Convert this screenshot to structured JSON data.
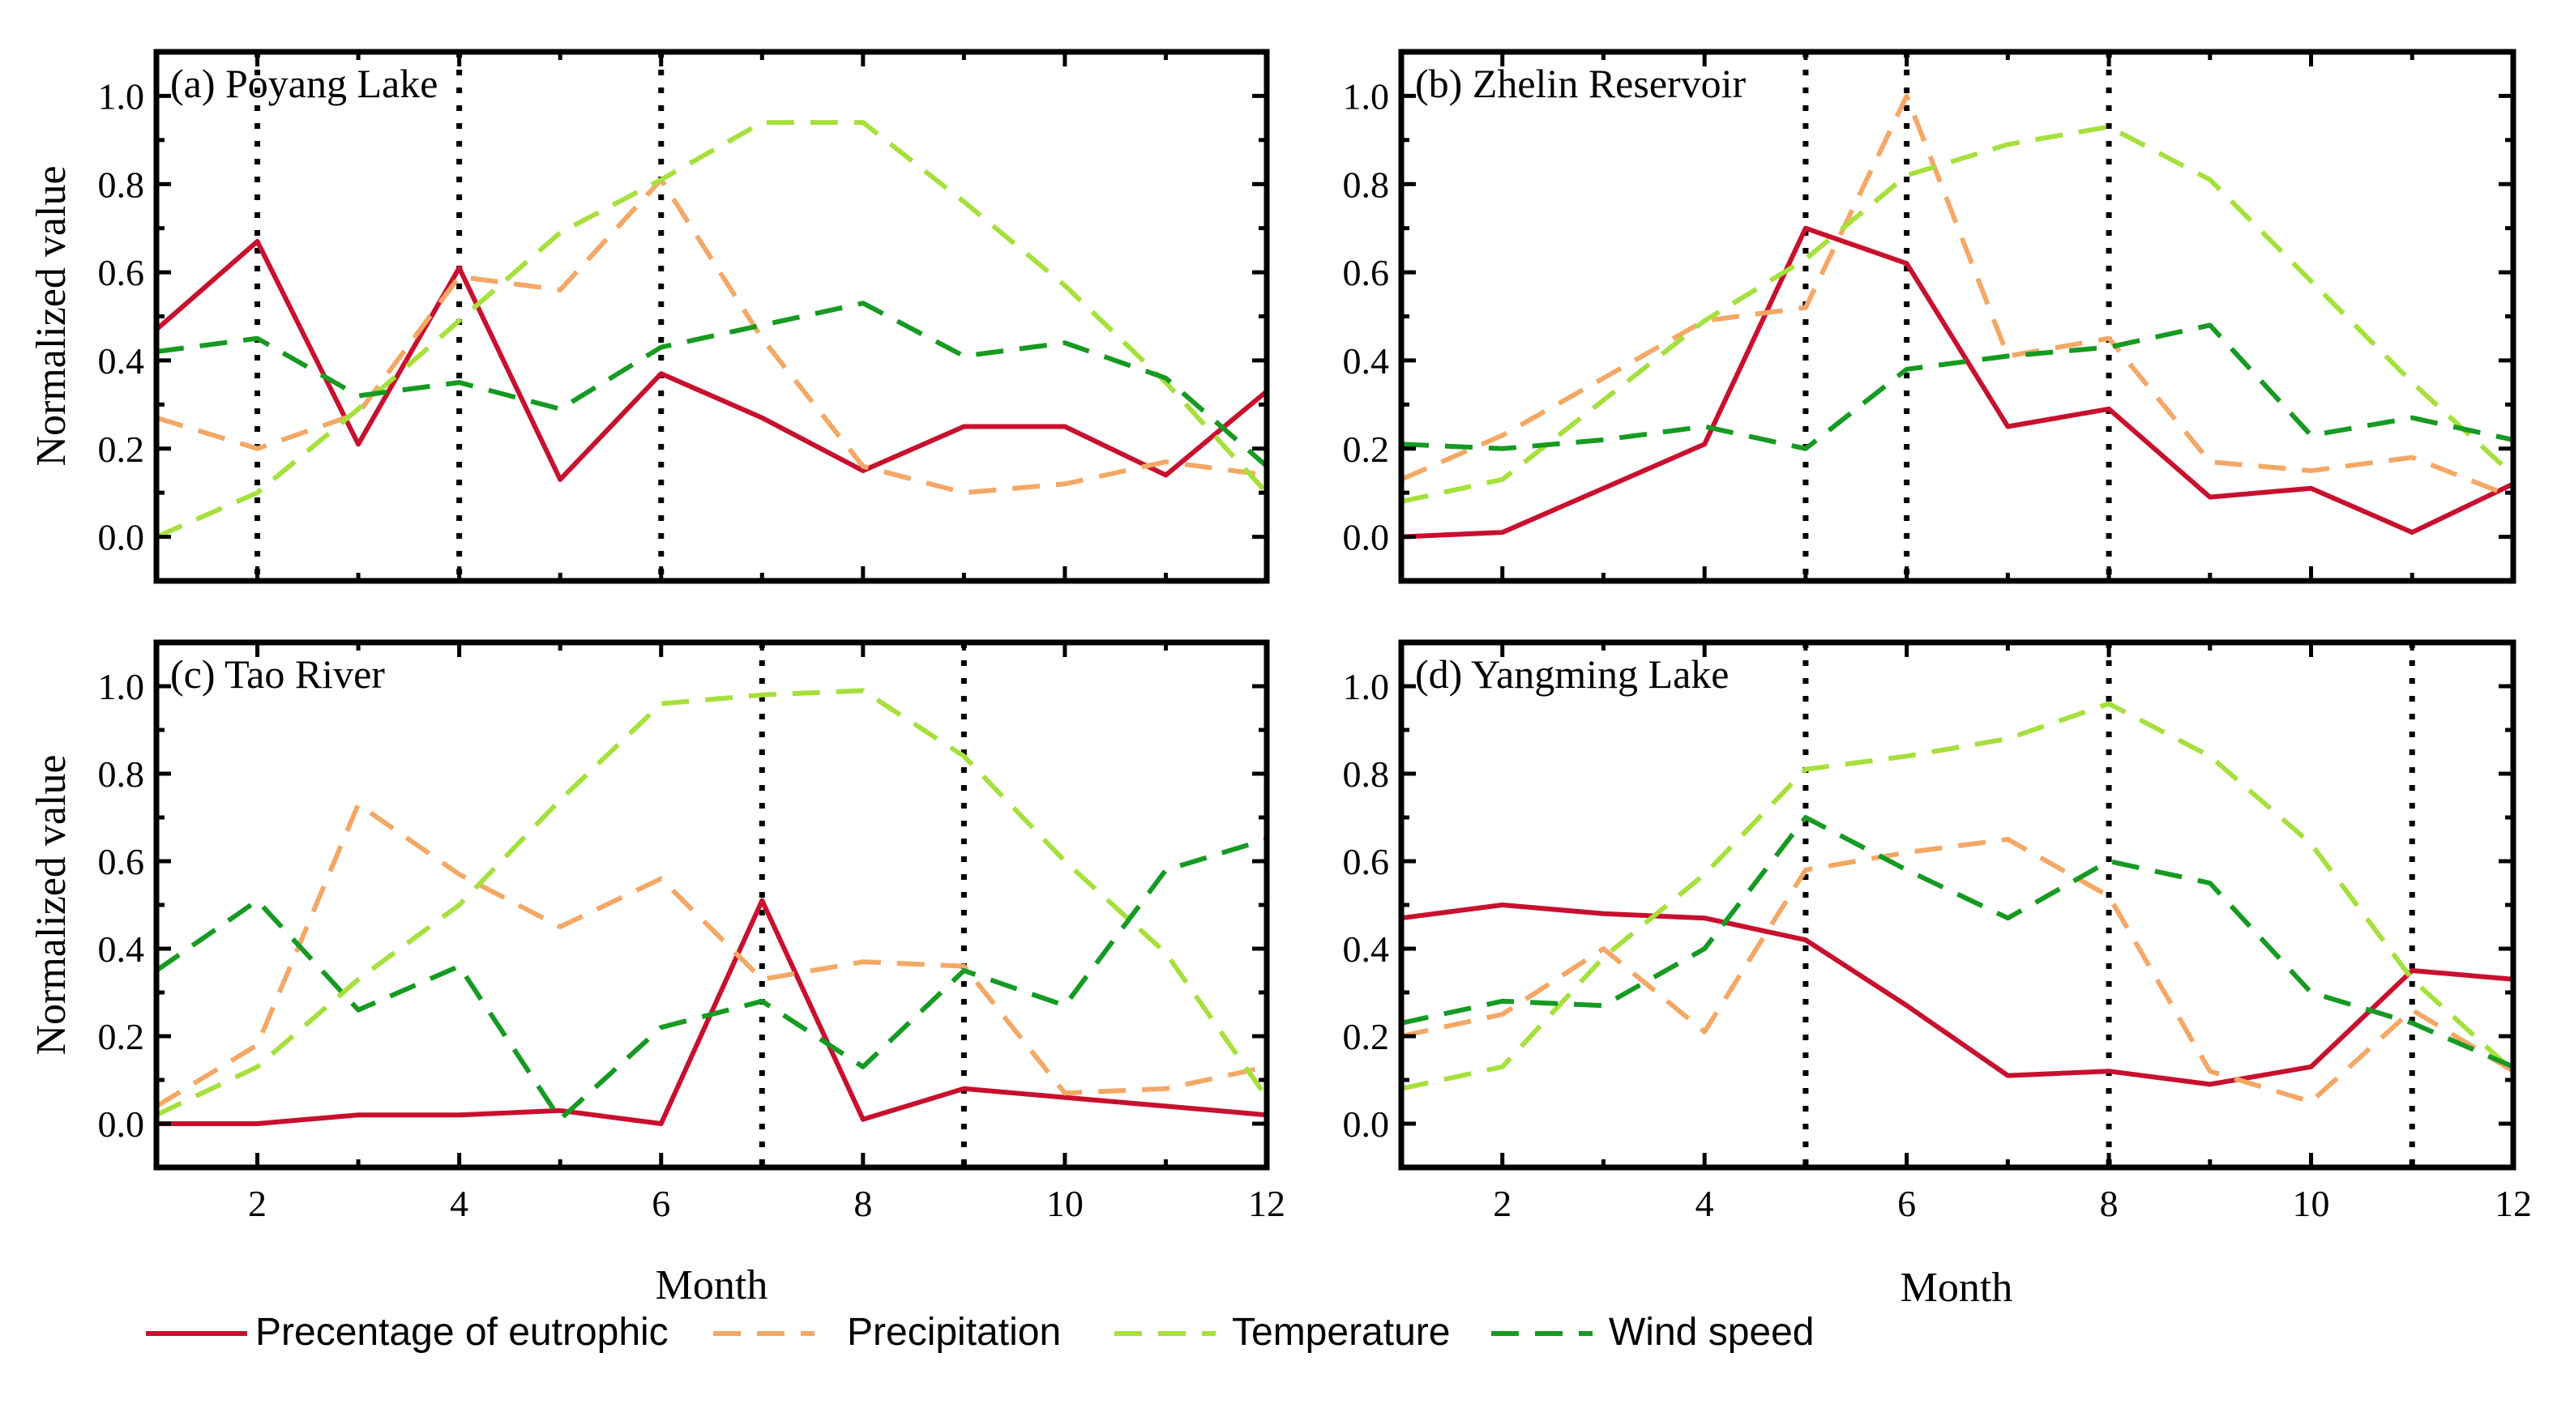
{
  "chart_data": {
    "type": "line",
    "x_label": "Month",
    "y_label": "Normalized value",
    "xlim": [
      1,
      12
    ],
    "ylim": [
      -0.1,
      1.1
    ],
    "x_ticks": [
      2,
      4,
      6,
      8,
      10,
      12
    ],
    "y_ticks": [
      "0.0",
      "0.2",
      "0.4",
      "0.6",
      "0.8",
      "1.0"
    ],
    "series_style": {
      "Precentage of eutrophic": {
        "color": "#c8102e",
        "dash": "solid"
      },
      "Precipitation": {
        "color": "#f4a866",
        "dash": "dashed"
      },
      "Temperature": {
        "color": "#a6e03c",
        "dash": "dashed"
      },
      "Wind speed": {
        "color": "#159a22",
        "dash": "dashed"
      }
    },
    "legend": [
      "Precentage of eutrophic",
      "Precipitation",
      "Temperature",
      "Wind speed"
    ],
    "panels": [
      {
        "label": "(a) Poyang Lake",
        "vlines": [
          2,
          4,
          6
        ],
        "series": [
          {
            "name": "Precentage of eutrophic",
            "values": [
              0.47,
              0.67,
              0.21,
              0.61,
              0.13,
              0.37,
              0.27,
              0.15,
              0.25,
              0.25,
              0.14,
              0.33
            ]
          },
          {
            "name": "Precipitation",
            "values": [
              0.27,
              0.2,
              0.28,
              0.59,
              0.56,
              0.81,
              0.45,
              0.16,
              0.1,
              0.12,
              0.17,
              0.14
            ]
          },
          {
            "name": "Temperature",
            "values": [
              0.0,
              0.1,
              0.29,
              0.49,
              0.69,
              0.81,
              0.94,
              0.94,
              0.76,
              0.57,
              0.35,
              0.1
            ]
          },
          {
            "name": "Wind speed",
            "values": [
              0.42,
              0.45,
              0.32,
              0.35,
              0.29,
              0.43,
              0.48,
              0.53,
              0.41,
              0.44,
              0.36,
              0.16
            ]
          }
        ]
      },
      {
        "label": "(b) Zhelin Reservoir",
        "vlines": [
          5,
          6,
          8
        ],
        "series": [
          {
            "name": "Precentage of eutrophic",
            "values": [
              0.0,
              0.01,
              0.11,
              0.21,
              0.7,
              0.62,
              0.25,
              0.29,
              0.09,
              0.11,
              0.01,
              0.12
            ]
          },
          {
            "name": "Precipitation",
            "values": [
              0.13,
              0.23,
              0.36,
              0.49,
              0.52,
              1.0,
              0.41,
              0.45,
              0.17,
              0.15,
              0.18,
              0.09
            ]
          },
          {
            "name": "Temperature",
            "values": [
              0.08,
              0.13,
              0.31,
              0.49,
              0.63,
              0.82,
              0.89,
              0.93,
              0.81,
              0.58,
              0.35,
              0.14
            ]
          },
          {
            "name": "Wind speed",
            "values": [
              0.21,
              0.2,
              0.22,
              0.25,
              0.2,
              0.38,
              0.41,
              0.43,
              0.48,
              0.23,
              0.27,
              0.22
            ]
          }
        ]
      },
      {
        "label": "(c) Tao River",
        "vlines": [
          7,
          9
        ],
        "series": [
          {
            "name": "Precentage of eutrophic",
            "values": [
              0.0,
              0.0,
              0.02,
              0.02,
              0.03,
              0.0,
              0.51,
              0.01,
              0.08,
              0.06,
              0.04,
              0.02
            ]
          },
          {
            "name": "Precipitation",
            "values": [
              0.04,
              0.18,
              0.73,
              0.57,
              0.45,
              0.56,
              0.33,
              0.37,
              0.36,
              0.07,
              0.08,
              0.13
            ]
          },
          {
            "name": "Temperature",
            "values": [
              0.02,
              0.13,
              0.33,
              0.5,
              0.74,
              0.96,
              0.98,
              0.99,
              0.84,
              0.6,
              0.39,
              0.06
            ]
          },
          {
            "name": "Wind speed",
            "values": [
              0.35,
              0.51,
              0.26,
              0.36,
              0.01,
              0.22,
              0.28,
              0.13,
              0.35,
              0.27,
              0.58,
              0.65
            ]
          }
        ]
      },
      {
        "label": "(d) Yangming Lake",
        "vlines": [
          5,
          8,
          11
        ],
        "series": [
          {
            "name": "Precentage of eutrophic",
            "values": [
              0.47,
              0.5,
              0.48,
              0.47,
              0.42,
              0.27,
              0.11,
              0.12,
              0.09,
              0.13,
              0.35,
              0.33
            ]
          },
          {
            "name": "Precipitation",
            "values": [
              0.2,
              0.25,
              0.4,
              0.21,
              0.58,
              0.62,
              0.65,
              0.52,
              0.12,
              0.05,
              0.26,
              0.12
            ]
          },
          {
            "name": "Temperature",
            "values": [
              0.08,
              0.13,
              0.38,
              0.57,
              0.81,
              0.84,
              0.88,
              0.96,
              0.84,
              0.64,
              0.33,
              0.12
            ]
          },
          {
            "name": "Wind speed",
            "values": [
              0.23,
              0.28,
              0.27,
              0.4,
              0.7,
              0.58,
              0.47,
              0.6,
              0.55,
              0.3,
              0.23,
              0.13
            ]
          }
        ]
      }
    ]
  }
}
